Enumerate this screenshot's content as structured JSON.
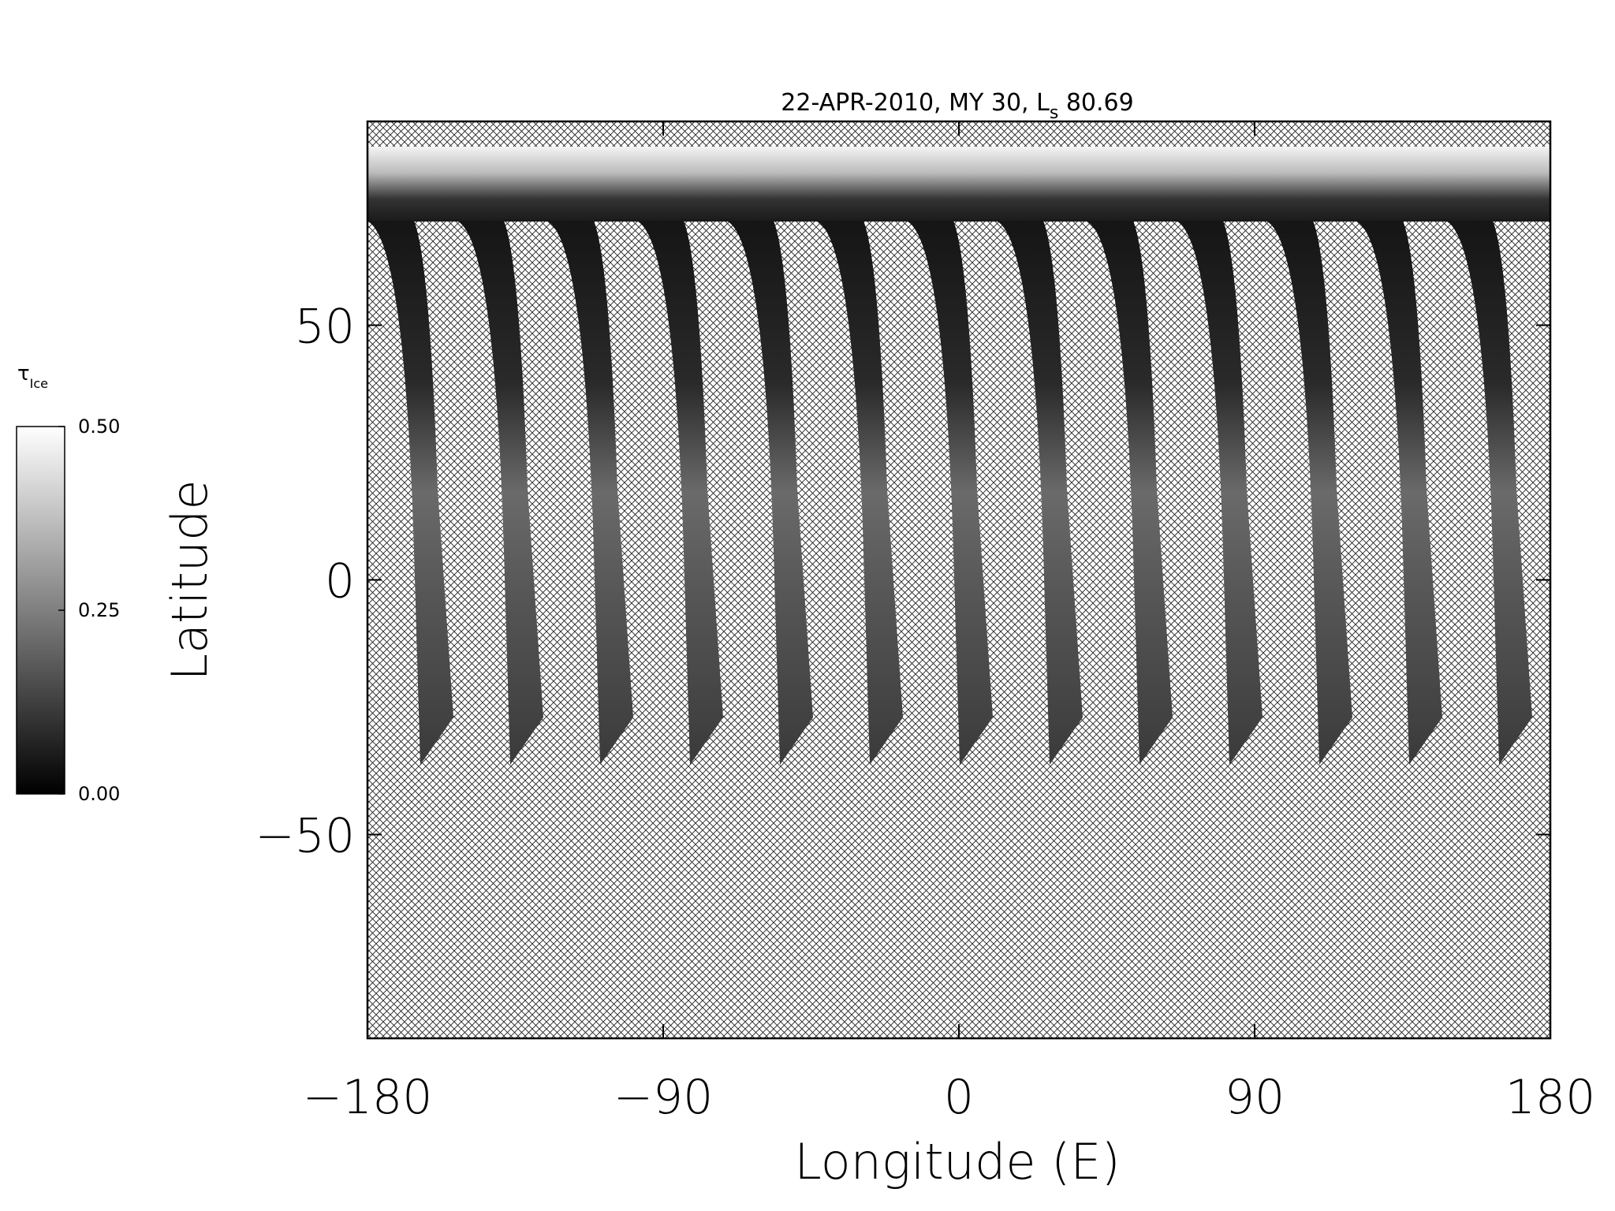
{
  "chart_data": {
    "type": "map",
    "title_parts": [
      "22-APR-2010, MY 30,  L",
      "s",
      " 80.69"
    ],
    "xlabel": "Longitude (E)",
    "ylabel": "Latitude",
    "xlim": [
      -180,
      180
    ],
    "ylim": [
      -90,
      90
    ],
    "xticks": [
      {
        "value": -180,
        "label": "−180"
      },
      {
        "value": -90,
        "label": "−90"
      },
      0,
      90,
      180
    ],
    "yticks": [
      {
        "value": -50,
        "label": "−50"
      },
      0,
      50
    ],
    "colorbar": {
      "label": "τ",
      "label_subscript": "Ice",
      "lim": [
        0,
        0.5
      ],
      "ticks": [
        {
          "value": 0,
          "label": "0.00"
        },
        {
          "value": 0.25,
          "label": "0.25"
        },
        {
          "value": 0.5,
          "label": "0.50"
        }
      ]
    }
  }
}
